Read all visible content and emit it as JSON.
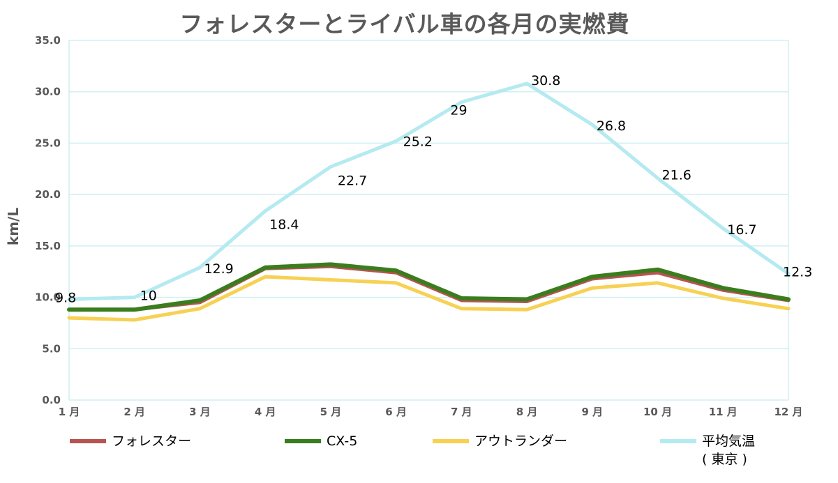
{
  "chart_data": {
    "type": "line",
    "title": "フォレスターとライバル車の各月の実燃費",
    "ylabel": "km/L",
    "xlabel": "",
    "ylim": [
      0,
      35
    ],
    "yticks": [
      "0.0",
      "5.0",
      "10.0",
      "15.0",
      "20.0",
      "25.0",
      "30.0",
      "35.0"
    ],
    "grid": true,
    "legend_position": "bottom",
    "categories": [
      "1 月",
      "2 月",
      "3 月",
      "4 月",
      "5 月",
      "6 月",
      "7 月",
      "8 月",
      "9 月",
      "10 月",
      "11 月",
      "12 月"
    ],
    "series": [
      {
        "name": "フォレスター",
        "color": "#b85450",
        "values": [
          8.8,
          8.8,
          9.5,
          12.8,
          13.0,
          12.4,
          9.7,
          9.6,
          11.8,
          12.4,
          10.7,
          9.7
        ],
        "show_labels": false
      },
      {
        "name": "CX-5",
        "color": "#3a7d1e",
        "values": [
          8.8,
          8.8,
          9.7,
          12.9,
          13.2,
          12.6,
          9.9,
          9.8,
          12.0,
          12.7,
          10.9,
          9.8
        ],
        "show_labels": false
      },
      {
        "name": "アウトランダー",
        "color": "#f7d154",
        "values": [
          8.0,
          7.8,
          8.9,
          12.0,
          11.7,
          11.4,
          8.9,
          8.8,
          10.9,
          11.4,
          9.9,
          8.9
        ],
        "show_labels": false
      },
      {
        "name": "平均気温\n( 東京 )",
        "color": "#b4eaf0",
        "values": [
          9.8,
          10,
          12.9,
          18.4,
          22.7,
          25.2,
          29,
          30.8,
          26.8,
          21.6,
          16.7,
          12.3
        ],
        "show_labels": true
      }
    ],
    "data_labels": [
      "9.8",
      "10",
      "12.9",
      "18.4",
      "22.7",
      "25.2",
      "29",
      "30.8",
      "26.8",
      "21.6",
      "16.7",
      "12.3"
    ]
  }
}
